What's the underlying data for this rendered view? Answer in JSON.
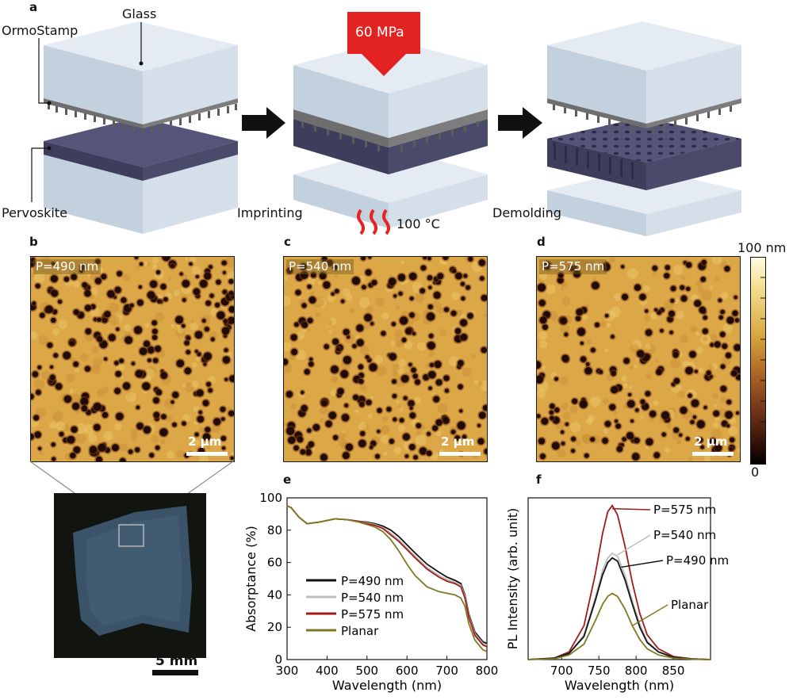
{
  "panel_labels": {
    "a": "a",
    "b": "b",
    "c": "c",
    "d": "d",
    "e": "e",
    "f": "f"
  },
  "schematic": {
    "label_glass": "Glass",
    "label_ormostamp": "OrmoStamp",
    "label_pervoskite": "Pervoskite",
    "label_imprinting": "Imprinting",
    "label_demolding": "Demolding",
    "pressure": "60 MPa",
    "temperature": "100 °C"
  },
  "afm": {
    "images": [
      {
        "period_label": "P=490 nm",
        "scale_bar": "2 µm"
      },
      {
        "period_label": "P=540 nm",
        "scale_bar": "2 µm"
      },
      {
        "period_label": "P=575 nm",
        "scale_bar": "2 µm"
      }
    ],
    "colorbar_max": "100 nm",
    "colorbar_min": "0"
  },
  "photo": {
    "scale_bar": "5 mm"
  },
  "colors": {
    "s490": "#111111",
    "s540": "#bdbdbd",
    "s575": "#a11b1b",
    "planar": "#7f7a22",
    "pressure_arrow": "#e32222",
    "perovskite": "#4a4a6a",
    "glass": "#c9d5e2"
  },
  "chart_data": [
    {
      "type": "line",
      "panel": "e",
      "xlabel": "Wavelength (nm)",
      "ylabel": "Absorptance (%)",
      "xlim": [
        300,
        800
      ],
      "ylim": [
        0,
        100
      ],
      "xticks": [
        300,
        400,
        500,
        600,
        700,
        800
      ],
      "yticks": [
        0,
        20,
        40,
        60,
        80,
        100
      ],
      "legend_position": "lower-left",
      "series": [
        {
          "name": "P=490 nm",
          "color": "#111111",
          "x": [
            300,
            310,
            330,
            350,
            380,
            420,
            450,
            480,
            500,
            520,
            540,
            560,
            580,
            600,
            620,
            650,
            680,
            700,
            720,
            735,
            745,
            755,
            770,
            790,
            800
          ],
          "y": [
            95,
            94,
            88,
            84,
            85,
            87,
            86.5,
            85.5,
            85,
            84,
            82.5,
            80,
            76,
            71,
            66,
            59,
            54,
            51,
            49,
            47,
            40,
            28,
            17,
            11,
            10
          ]
        },
        {
          "name": "P=540 nm",
          "color": "#bdbdbd",
          "x": [
            300,
            310,
            330,
            350,
            380,
            420,
            450,
            480,
            500,
            520,
            540,
            560,
            580,
            600,
            620,
            650,
            680,
            700,
            720,
            735,
            745,
            755,
            770,
            790,
            800
          ],
          "y": [
            95,
            94,
            88,
            84,
            85,
            87,
            86.5,
            85.5,
            84.5,
            83.5,
            81.5,
            78,
            74,
            69,
            64,
            57,
            52,
            49.5,
            48,
            46,
            39,
            27,
            16,
            10,
            9
          ]
        },
        {
          "name": "P=575 nm",
          "color": "#a11b1b",
          "x": [
            300,
            310,
            330,
            350,
            380,
            420,
            450,
            480,
            500,
            520,
            540,
            560,
            580,
            600,
            620,
            650,
            680,
            700,
            720,
            735,
            745,
            755,
            770,
            790,
            800
          ],
          "y": [
            95,
            94,
            88,
            84,
            85,
            87,
            86.5,
            85.5,
            84,
            83,
            81,
            77,
            73,
            68,
            63,
            56,
            51,
            48.5,
            47,
            45,
            38,
            26,
            15,
            9,
            8
          ]
        },
        {
          "name": "Planar",
          "color": "#7f7a22",
          "x": [
            300,
            310,
            330,
            350,
            380,
            420,
            450,
            480,
            500,
            520,
            540,
            560,
            580,
            600,
            620,
            650,
            680,
            700,
            720,
            735,
            745,
            755,
            770,
            790,
            800
          ],
          "y": [
            95,
            94,
            88,
            84,
            85,
            87,
            86.5,
            85,
            83.5,
            82,
            79,
            74,
            67,
            59,
            52,
            45,
            42,
            41,
            40,
            38,
            33,
            22,
            12,
            6,
            5
          ]
        }
      ]
    },
    {
      "type": "line",
      "panel": "f",
      "xlabel": "Wavelength (nm)",
      "ylabel": "PL Intensity (arb. unit)",
      "xlim": [
        655,
        900
      ],
      "ylim": [
        0,
        1.05
      ],
      "xticks": [
        700,
        750,
        800,
        850
      ],
      "annotations": [
        "P=575 nm",
        "P=540 nm",
        "P=490 nm",
        "Planar"
      ],
      "series": [
        {
          "name": "P=575 nm",
          "color": "#a11b1b",
          "x": [
            655,
            690,
            710,
            730,
            745,
            755,
            762,
            768,
            775,
            785,
            795,
            805,
            815,
            830,
            850,
            875,
            900
          ],
          "y": [
            0,
            0.01,
            0.05,
            0.22,
            0.55,
            0.82,
            0.96,
            1.0,
            0.94,
            0.74,
            0.5,
            0.3,
            0.16,
            0.07,
            0.02,
            0.005,
            0
          ]
        },
        {
          "name": "P=540 nm",
          "color": "#bdbdbd",
          "x": [
            655,
            690,
            710,
            730,
            745,
            755,
            762,
            768,
            775,
            785,
            795,
            805,
            815,
            830,
            850,
            875,
            900
          ],
          "y": [
            0,
            0.01,
            0.04,
            0.16,
            0.4,
            0.58,
            0.66,
            0.69,
            0.67,
            0.55,
            0.38,
            0.23,
            0.12,
            0.05,
            0.015,
            0.004,
            0
          ]
        },
        {
          "name": "P=490 nm",
          "color": "#111111",
          "x": [
            655,
            690,
            710,
            730,
            745,
            755,
            762,
            768,
            775,
            785,
            795,
            805,
            815,
            830,
            850,
            875,
            900
          ],
          "y": [
            0,
            0.01,
            0.04,
            0.15,
            0.38,
            0.55,
            0.63,
            0.66,
            0.64,
            0.52,
            0.36,
            0.21,
            0.11,
            0.05,
            0.015,
            0.004,
            0
          ]
        },
        {
          "name": "Planar",
          "color": "#7f7a22",
          "x": [
            655,
            690,
            710,
            730,
            745,
            755,
            762,
            768,
            775,
            785,
            795,
            805,
            815,
            830,
            850,
            875,
            900
          ],
          "y": [
            0,
            0.005,
            0.03,
            0.1,
            0.25,
            0.36,
            0.41,
            0.43,
            0.41,
            0.33,
            0.22,
            0.13,
            0.07,
            0.03,
            0.01,
            0.003,
            0
          ]
        }
      ]
    }
  ]
}
